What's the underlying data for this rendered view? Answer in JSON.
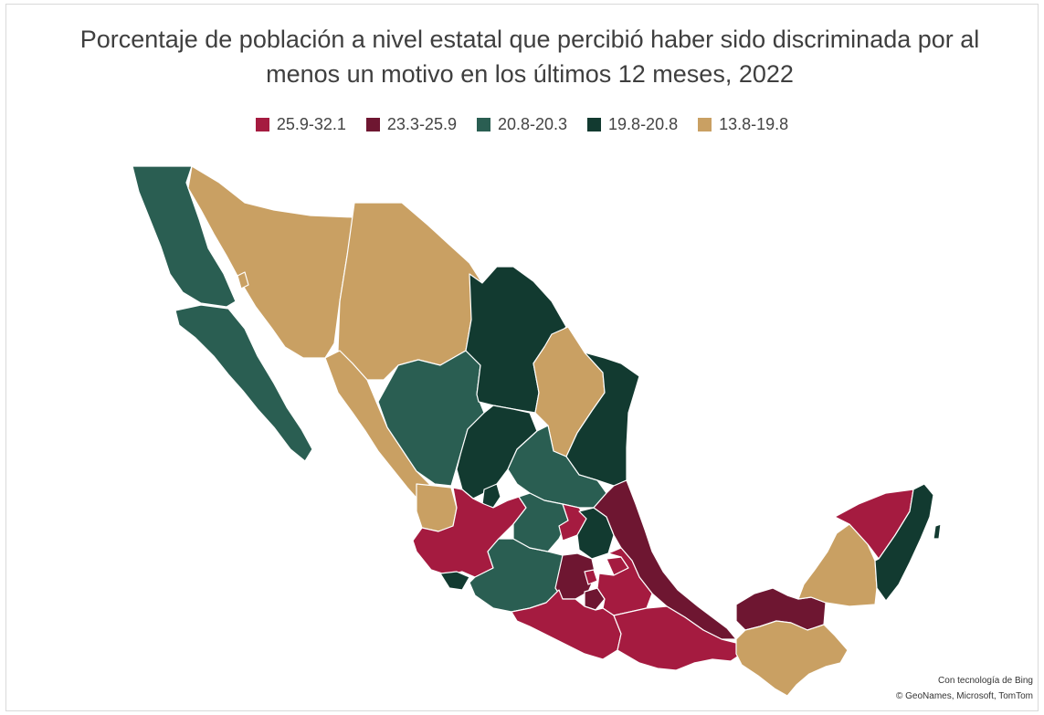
{
  "title_line1": "Porcentaje de población a nivel estatal que percibió haber sido discriminada por al",
  "title_line2": "menos un motivo en los últimos 12 meses, 2022",
  "legend": [
    {
      "label": "25.9-32.1",
      "color": "#a51b40"
    },
    {
      "label": "23.3-25.9",
      "color": "#6e1631"
    },
    {
      "label": "20.8-20.3",
      "color": "#2a5e52"
    },
    {
      "label": "19.8-20.8",
      "color": "#123a30"
    },
    {
      "label": "13.8-19.8",
      "color": "#c9a063"
    }
  ],
  "credit_line1": "Con tecnología de Bing",
  "credit_line2": "© GeoNames, Microsoft, TomTom",
  "region_colors": {
    "baja_california": "#2a5e52",
    "baja_california_sur": "#2a5e52",
    "sonora": "#c9a063",
    "chihuahua": "#c9a063",
    "sinaloa": "#c9a063",
    "nayarit": "#c9a063",
    "durango": "#2a5e52",
    "coahuila": "#123a30",
    "nuevo_leon": "#c9a063",
    "tamaulipas": "#123a30",
    "zacatecas": "#123a30",
    "aguascalientes": "#123a30",
    "san_luis_potosi": "#2a5e52",
    "jalisco": "#a51b40",
    "colima": "#123a30",
    "michoacan": "#2a5e52",
    "guanajuato": "#2a5e52",
    "queretaro": "#a51b40",
    "hidalgo": "#123a30",
    "veracruz": "#6e1631",
    "estado_de_mexico": "#6e1631",
    "ciudad_de_mexico": "#a51b40",
    "morelos": "#6e1631",
    "puebla": "#a51b40",
    "tlaxcala": "#a51b40",
    "guerrero": "#a51b40",
    "oaxaca": "#a51b40",
    "tabasco": "#6e1631",
    "chiapas": "#c9a063",
    "campeche": "#c9a063",
    "yucatan": "#a51b40",
    "quintana_roo": "#123a30"
  }
}
